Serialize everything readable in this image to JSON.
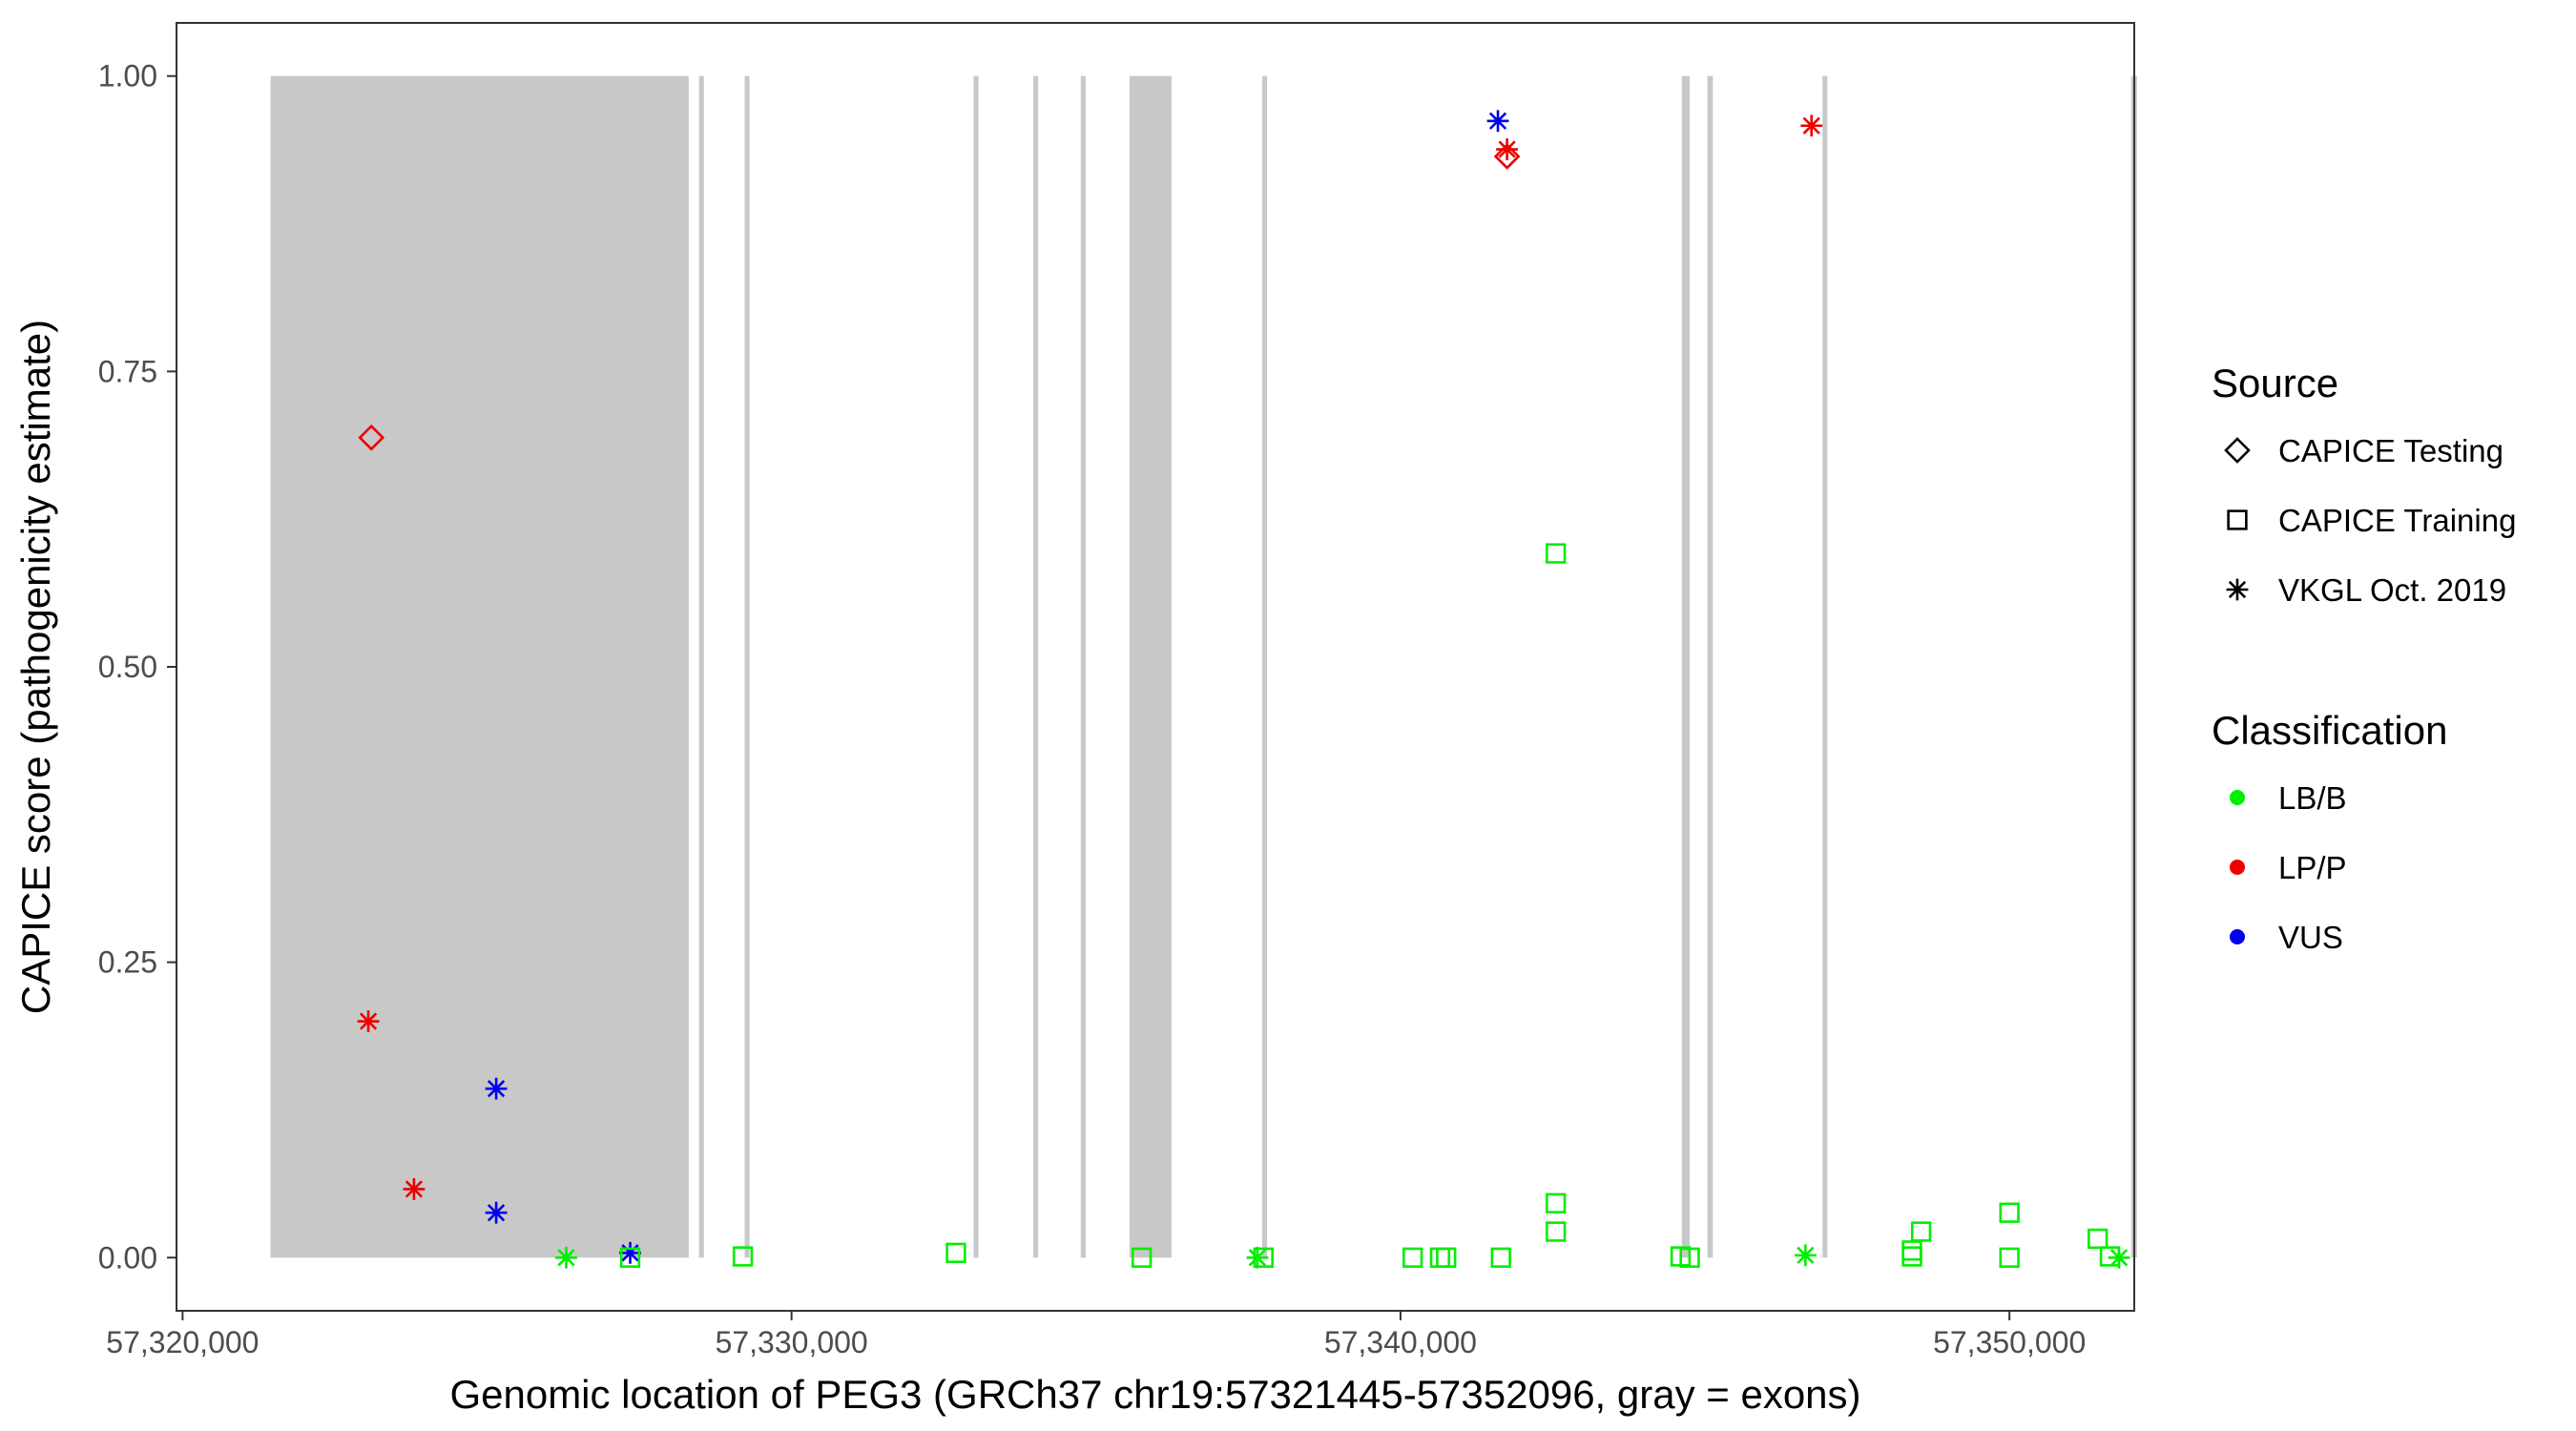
{
  "chart_data": {
    "type": "scatter",
    "xlabel": "Genomic location of PEG3 (GRCh37 chr19:57321445-57352096, gray = exons)",
    "ylabel": "CAPICE score (pathogenicity estimate)",
    "xlim": [
      57319900,
      57352050
    ],
    "ylim": [
      -0.045,
      1.045
    ],
    "xticks": [
      57320000,
      57330000,
      57340000,
      57350000
    ],
    "xtick_labels": [
      "57,320,000",
      "57,330,000",
      "57,340,000",
      "57,350,000"
    ],
    "yticks": [
      0,
      0.25,
      0.5,
      0.75,
      1
    ],
    "ytick_labels": [
      "0.00",
      "0.25",
      "0.50",
      "0.75",
      "1.00"
    ],
    "grid": false,
    "legend_position": "right",
    "exons": [
      [
        57321445,
        57328311
      ],
      [
        57328480,
        57328560
      ],
      [
        57329230,
        57329310
      ],
      [
        57332990,
        57333070
      ],
      [
        57333970,
        57334050
      ],
      [
        57334750,
        57334830
      ],
      [
        57335550,
        57336240
      ],
      [
        57337730,
        57337800
      ],
      [
        57344620,
        57344750
      ],
      [
        57345040,
        57345130
      ],
      [
        57346930,
        57347010
      ],
      [
        57352000,
        57352096
      ]
    ],
    "legends": [
      {
        "title": "Source",
        "items": [
          {
            "label": "CAPICE Testing",
            "shape": "diamond"
          },
          {
            "label": "CAPICE Training",
            "shape": "square"
          },
          {
            "label": "VKGL Oct. 2019",
            "shape": "asterisk"
          }
        ]
      },
      {
        "title": "Classification",
        "items": [
          {
            "label": "LB/B",
            "color": "#00ee00"
          },
          {
            "label": "LP/P",
            "color": "#ee0000"
          },
          {
            "label": "VUS",
            "color": "#0000ee"
          }
        ]
      }
    ],
    "series": [
      {
        "source": "CAPICE Testing",
        "classification": "LP/P",
        "points": [
          [
            57323100,
            0.694
          ],
          [
            57341750,
            0.932
          ]
        ]
      },
      {
        "source": "VKGL Oct. 2019",
        "classification": "LP/P",
        "points": [
          [
            57323050,
            0.2
          ],
          [
            57323800,
            0.058
          ],
          [
            57341750,
            0.938
          ],
          [
            57346750,
            0.958
          ]
        ]
      },
      {
        "source": "VKGL Oct. 2019",
        "classification": "VUS",
        "points": [
          [
            57341600,
            0.962
          ],
          [
            57325150,
            0.143
          ],
          [
            57325150,
            0.038
          ],
          [
            57327350,
            0.004
          ]
        ]
      },
      {
        "source": "VKGL Oct. 2019",
        "classification": "LB/B",
        "points": [
          [
            57326300,
            0.0
          ],
          [
            57337650,
            0.0
          ],
          [
            57346650,
            0.002
          ],
          [
            57351800,
            0.0
          ]
        ]
      },
      {
        "source": "CAPICE Training",
        "classification": "LB/B",
        "points": [
          [
            57327350,
            0.0
          ],
          [
            57329200,
            0.001
          ],
          [
            57332700,
            0.004
          ],
          [
            57335750,
            0.0
          ],
          [
            57337750,
            0.0
          ],
          [
            57340200,
            0.0
          ],
          [
            57340650,
            0.0
          ],
          [
            57340750,
            0.0
          ],
          [
            57341650,
            0.0
          ],
          [
            57342550,
            0.596
          ],
          [
            57342550,
            0.046
          ],
          [
            57342550,
            0.022
          ],
          [
            57344600,
            0.001
          ],
          [
            57344750,
            0.0
          ],
          [
            57348400,
            0.001
          ],
          [
            57348400,
            0.006
          ],
          [
            57348550,
            0.022
          ],
          [
            57350000,
            0.038
          ],
          [
            57350000,
            0.0
          ],
          [
            57351450,
            0.016
          ],
          [
            57351650,
            0.001
          ]
        ]
      }
    ]
  }
}
